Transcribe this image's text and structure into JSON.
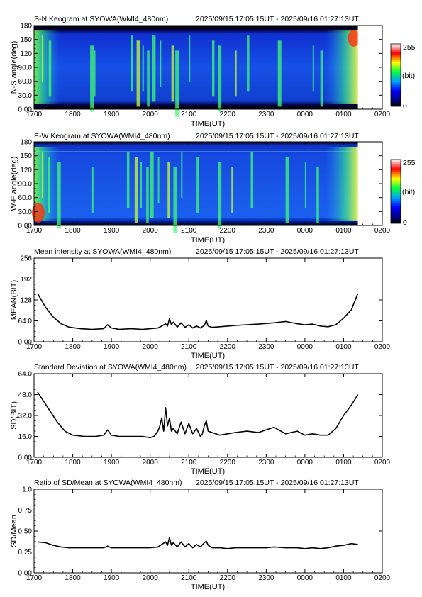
{
  "chart_data": [
    {
      "type": "heatmap",
      "title": "S-N Keogram at SYOWA(WMI4_480nm)",
      "time_range": "2025/09/15 17:05:15UT - 2025/09/16 01:27:13UT",
      "xlabel": "TIME(UT)",
      "ylabel": "N-S angle(deg)",
      "x_ticks": [
        "1700",
        "1800",
        "1900",
        "2000",
        "2100",
        "2200",
        "2300",
        "0000",
        "0100",
        "0200"
      ],
      "y_ticks": [
        "0.00",
        "30.0",
        "60.0",
        "90.0",
        "120",
        "150",
        "180"
      ],
      "ylim": [
        0,
        180
      ],
      "colorbar": {
        "label": "(bit)",
        "min_label": "0",
        "max_label": "255",
        "range": [
          0,
          255
        ]
      },
      "data_end_fraction": 0.93,
      "arc_hours": [
        0.2,
        0.38,
        1.45,
        1.55,
        2.5,
        2.65,
        2.8,
        2.92,
        3.05,
        3.25,
        3.55,
        3.65,
        4.0,
        4.6,
        4.75,
        5.2,
        5.5,
        6.3,
        7.2,
        7.4
      ]
    },
    {
      "type": "heatmap",
      "title": "E-W Keogram at SYOWA(WMI4_480nm)",
      "time_range": "2025/09/15 17:05:15UT - 2025/09/16 01:27:13UT",
      "xlabel": "TIME(UT)",
      "ylabel": "W-E angle(deg)",
      "x_ticks": [
        "1700",
        "1800",
        "1900",
        "2000",
        "2100",
        "2200",
        "2300",
        "0000",
        "0100",
        "0200"
      ],
      "y_ticks": [
        "0.00",
        "30.0",
        "60.0",
        "90.0",
        "120",
        "150",
        "180"
      ],
      "ylim": [
        0,
        180
      ],
      "colorbar": {
        "label": "(bit)",
        "min_label": "0",
        "max_label": "255",
        "range": [
          0,
          255
        ]
      },
      "data_end_fraction": 0.93,
      "arc_hours": [
        0.2,
        0.35,
        0.6,
        1.5,
        2.4,
        2.6,
        2.75,
        2.9,
        3.0,
        3.2,
        3.45,
        3.6,
        3.8,
        4.2,
        4.75,
        5.1,
        5.6,
        6.5,
        7.0,
        7.3
      ]
    },
    {
      "type": "line",
      "title": "Mean intensity at SYOWA(WMI4_480nm)",
      "time_range": "2025/09/15 17:05:15UT - 2025/09/16 01:27:13UT",
      "xlabel": "TIME(UT)",
      "ylabel": "MEAN(BIT)",
      "x_ticks": [
        "1700",
        "1800",
        "1900",
        "2000",
        "2100",
        "2200",
        "2300",
        "0000",
        "0100",
        "0200"
      ],
      "y_ticks": [
        "0.00",
        "64.0",
        "128",
        "192",
        "256"
      ],
      "ylim": [
        0,
        256
      ],
      "x_unit": "hours after 1700 UT",
      "x": [
        0.09,
        0.3,
        0.5,
        0.7,
        0.9,
        1.2,
        1.5,
        1.8,
        1.9,
        2.0,
        2.2,
        2.5,
        2.8,
        3.0,
        3.2,
        3.3,
        3.4,
        3.45,
        3.5,
        3.55,
        3.6,
        3.7,
        3.8,
        3.9,
        4.0,
        4.1,
        4.2,
        4.3,
        4.4,
        4.45,
        4.5,
        4.6,
        4.8,
        5.0,
        5.2,
        5.5,
        5.8,
        6.0,
        6.2,
        6.5,
        6.8,
        7.0,
        7.2,
        7.4,
        7.6,
        7.8,
        8.0,
        8.2,
        8.37
      ],
      "y": [
        148,
        105,
        75,
        55,
        45,
        40,
        38,
        40,
        52,
        42,
        38,
        40,
        38,
        40,
        42,
        48,
        55,
        48,
        70,
        52,
        60,
        45,
        58,
        44,
        52,
        42,
        48,
        42,
        50,
        65,
        48,
        44,
        46,
        48,
        50,
        52,
        54,
        56,
        58,
        62,
        55,
        52,
        54,
        48,
        46,
        52,
        72,
        98,
        148
      ]
    },
    {
      "type": "line",
      "title": "Standard Deviation at SYOWA(WMI4_480nm)",
      "time_range": "2025/09/15 17:05:15UT - 2025/09/16 01:27:13UT",
      "xlabel": "TIME(UT)",
      "ylabel": "SD(BIT)",
      "x_ticks": [
        "1700",
        "1800",
        "1900",
        "2000",
        "2100",
        "2200",
        "2300",
        "0000",
        "0100",
        "0200"
      ],
      "y_ticks": [
        "0.00",
        "16.0",
        "32.0",
        "48.0",
        "64.0"
      ],
      "ylim": [
        0,
        64
      ],
      "x_unit": "hours after 1700 UT",
      "x": [
        0.09,
        0.2,
        0.4,
        0.6,
        0.8,
        1.0,
        1.3,
        1.6,
        1.8,
        1.9,
        2.0,
        2.2,
        2.5,
        2.8,
        3.0,
        3.1,
        3.2,
        3.25,
        3.3,
        3.35,
        3.4,
        3.45,
        3.5,
        3.55,
        3.6,
        3.7,
        3.8,
        3.9,
        4.0,
        4.1,
        4.2,
        4.3,
        4.35,
        4.4,
        4.45,
        4.5,
        4.6,
        4.8,
        5.0,
        5.2,
        5.5,
        5.8,
        6.0,
        6.2,
        6.5,
        6.8,
        7.0,
        7.2,
        7.4,
        7.6,
        7.8,
        8.0,
        8.2,
        8.37
      ],
      "y": [
        50,
        45,
        36,
        27,
        20,
        17,
        16,
        16,
        17,
        21,
        17,
        16,
        16,
        16,
        15,
        16,
        20,
        24,
        30,
        20,
        38,
        24,
        30,
        20,
        22,
        18,
        27,
        18,
        26,
        18,
        22,
        16,
        18,
        24,
        28,
        20,
        19,
        17,
        18,
        19,
        20,
        19,
        21,
        23,
        18,
        20,
        17,
        18,
        17,
        17,
        22,
        32,
        40,
        48
      ]
    },
    {
      "type": "line",
      "title": "Ratio of SD/Mean at SYOWA(WMI4_480nm)",
      "time_range": "2025/09/15 17:05:15UT - 2025/09/16 01:27:13UT",
      "xlabel": "TIME(UT)",
      "ylabel": "SD/Mean",
      "x_ticks": [
        "1700",
        "1800",
        "1900",
        "2000",
        "2100",
        "2200",
        "2300",
        "0000",
        "0100",
        "0200"
      ],
      "y_ticks": [
        "0.00",
        "0.25",
        "0.50",
        "0.75",
        "1.0"
      ],
      "ylim": [
        0,
        1
      ],
      "x_unit": "hours after 1700 UT",
      "x": [
        0.09,
        0.3,
        0.5,
        0.7,
        0.9,
        1.2,
        1.5,
        1.8,
        1.9,
        2.0,
        2.2,
        2.5,
        2.8,
        3.0,
        3.2,
        3.3,
        3.4,
        3.45,
        3.5,
        3.55,
        3.6,
        3.7,
        3.8,
        3.9,
        4.0,
        4.1,
        4.2,
        4.3,
        4.4,
        4.45,
        4.5,
        4.6,
        4.8,
        5.0,
        5.2,
        5.5,
        5.8,
        6.0,
        6.2,
        6.5,
        6.8,
        7.0,
        7.2,
        7.4,
        7.6,
        7.8,
        8.0,
        8.2,
        8.37
      ],
      "y": [
        0.37,
        0.36,
        0.33,
        0.31,
        0.3,
        0.3,
        0.3,
        0.3,
        0.32,
        0.3,
        0.3,
        0.3,
        0.3,
        0.3,
        0.31,
        0.34,
        0.37,
        0.33,
        0.42,
        0.33,
        0.36,
        0.31,
        0.37,
        0.31,
        0.35,
        0.3,
        0.34,
        0.31,
        0.36,
        0.38,
        0.33,
        0.3,
        0.3,
        0.29,
        0.3,
        0.3,
        0.3,
        0.3,
        0.31,
        0.3,
        0.3,
        0.29,
        0.3,
        0.29,
        0.3,
        0.32,
        0.33,
        0.35,
        0.34
      ]
    }
  ]
}
